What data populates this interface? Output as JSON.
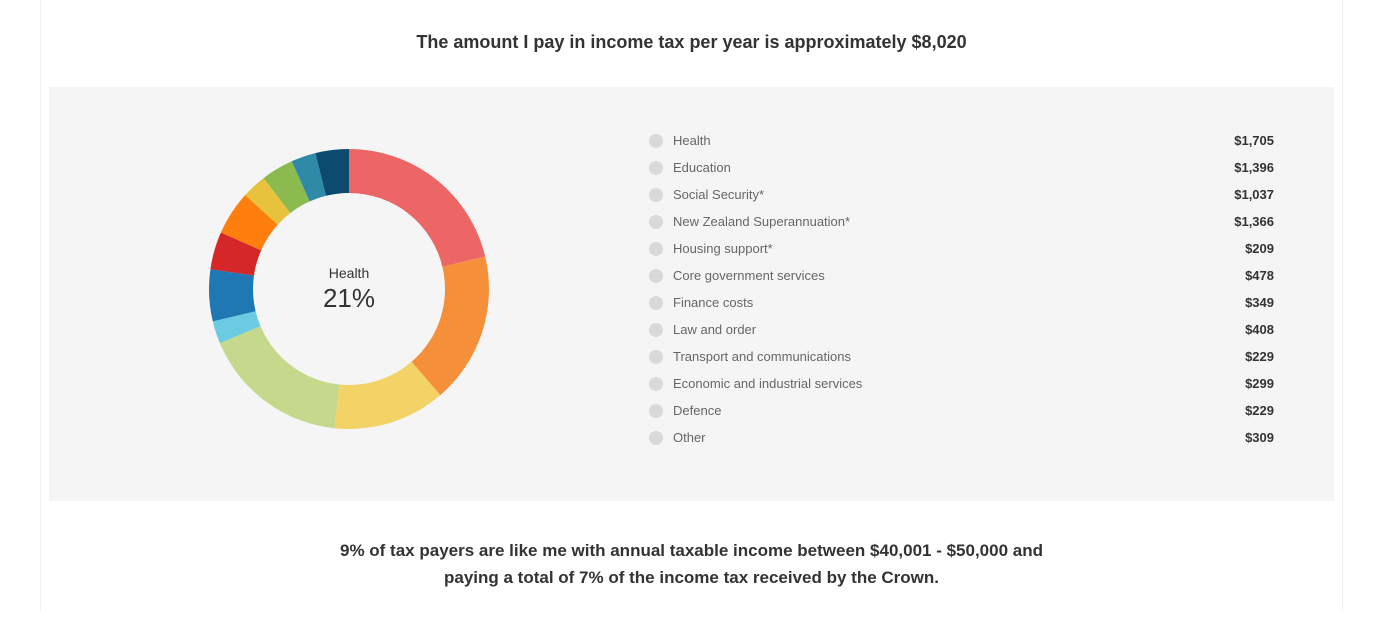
{
  "title": "The amount I pay in income tax per year is approximately $8,020",
  "chart": {
    "type": "donut",
    "center_label": "Health",
    "center_value": "21%",
    "background_color": "#f5f5f5",
    "outer_radius": 140,
    "inner_radius": 96,
    "legend_dot_color": "#d9d9d9",
    "label_color": "#666666",
    "amount_color": "#333333",
    "start_angle_deg": 0,
    "series": [
      {
        "label": "Health",
        "value": 1705,
        "amount": "$1,705",
        "color": "#ec6665"
      },
      {
        "label": "Education",
        "value": 1396,
        "amount": "$1,396",
        "color": "#f58f3a"
      },
      {
        "label": "Social Security*",
        "value": 1037,
        "amount": "$1,037",
        "color": "#f3d266"
      },
      {
        "label": "New Zealand Superannuation*",
        "value": 1366,
        "amount": "$1,366",
        "color": "#c5d88b"
      },
      {
        "label": "Housing support*",
        "value": 209,
        "amount": "$209",
        "color": "#6bcbe3"
      },
      {
        "label": "Core government services",
        "value": 478,
        "amount": "$478",
        "color": "#1f77b4"
      },
      {
        "label": "Finance costs",
        "value": 349,
        "amount": "$349",
        "color": "#d62728"
      },
      {
        "label": "Law and order",
        "value": 408,
        "amount": "$408",
        "color": "#ff7f0e"
      },
      {
        "label": "Transport and communications",
        "value": 229,
        "amount": "$229",
        "color": "#e6c23d"
      },
      {
        "label": "Economic and industrial services",
        "value": 299,
        "amount": "$299",
        "color": "#8bba4f"
      },
      {
        "label": "Defence",
        "value": 229,
        "amount": "$229",
        "color": "#2f8aa8"
      },
      {
        "label": "Other",
        "value": 309,
        "amount": "$309",
        "color": "#0c4a6e"
      }
    ]
  },
  "footer_line1": "9% of tax payers are like me with annual taxable income between $40,001 - $50,000 and",
  "footer_line2": "paying a total of 7% of the income tax received by the Crown."
}
